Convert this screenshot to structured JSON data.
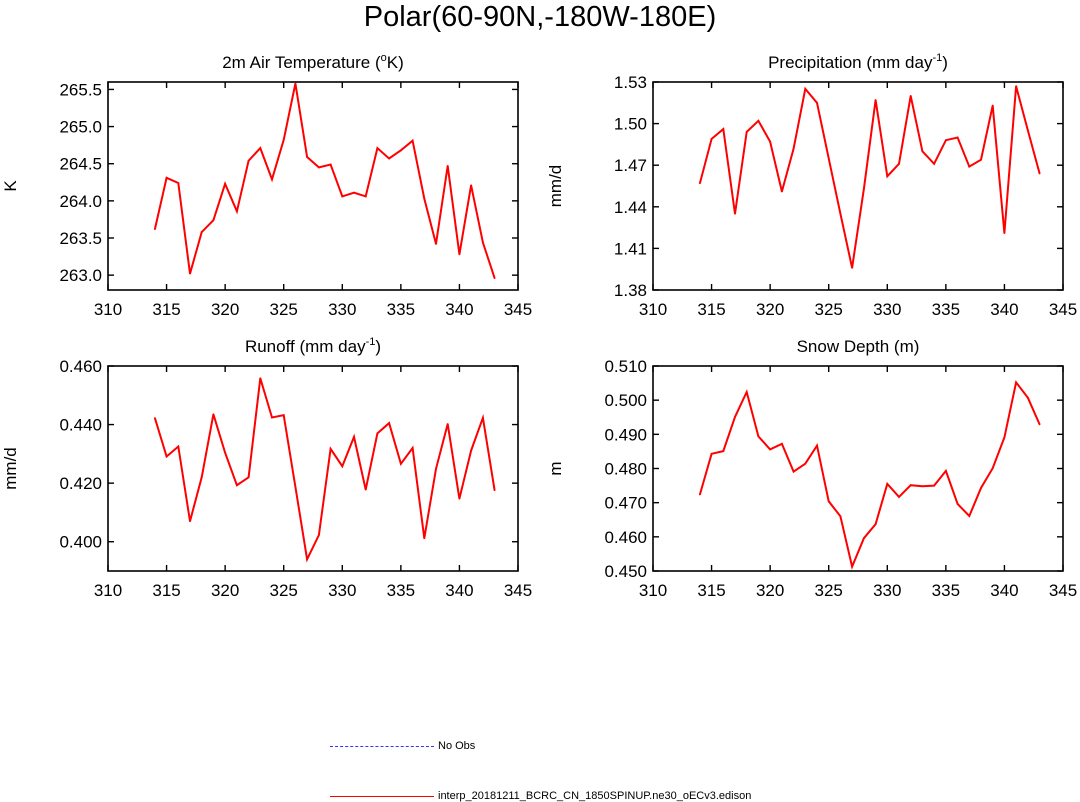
{
  "title": "Polar(60-90N,-180W-180E)",
  "line_color": "#ff0000",
  "obs_color": "#3333ff",
  "legend": [
    {
      "label": "No Obs",
      "style": "dashed",
      "color": "#3333ff"
    },
    {
      "label": "interp_20181211_BCRC_CN_1850SPINUP.ne30_oECv3.edison",
      "style": "solid",
      "color": "#ff0000"
    }
  ],
  "chart_data": [
    {
      "type": "line",
      "title_main": "2m Air Temperature (",
      "title_sup": "o",
      "title_tail": "K)",
      "ylabel": "K",
      "xlim": [
        310,
        345
      ],
      "ylim": [
        262.8,
        265.6
      ],
      "xticks": [
        310,
        315,
        320,
        325,
        330,
        335,
        340,
        345
      ],
      "yticks": [
        263.0,
        263.5,
        264.0,
        264.5,
        265.0,
        265.5
      ],
      "ytick_labels": [
        "263.0",
        "263.5",
        "264.0",
        "264.5",
        "265.0",
        "265.5"
      ],
      "x": [
        314,
        315,
        316,
        317,
        318,
        319,
        320,
        321,
        322,
        323,
        324,
        325,
        326,
        327,
        328,
        329,
        330,
        331,
        332,
        333,
        334,
        335,
        336,
        337,
        338,
        339,
        340,
        341,
        342,
        343
      ],
      "series": [
        {
          "name": "interp_20181211_BCRC_CN_1850SPINUP.ne30_oECv3.edison",
          "values": [
            263.62,
            264.31,
            264.24,
            263.02,
            263.58,
            263.74,
            264.23,
            263.86,
            264.54,
            264.71,
            264.29,
            264.82,
            265.58,
            264.59,
            264.45,
            264.49,
            264.06,
            264.11,
            264.06,
            264.71,
            264.57,
            264.68,
            264.81,
            264.03,
            263.42,
            264.47,
            263.28,
            264.21,
            263.44,
            262.96
          ]
        }
      ]
    },
    {
      "type": "line",
      "title_main": "Precipitation (mm day",
      "title_sup": "-1",
      "title_tail": ")",
      "ylabel": "mm/d",
      "xlim": [
        310,
        345
      ],
      "ylim": [
        1.38,
        1.53
      ],
      "xticks": [
        310,
        315,
        320,
        325,
        330,
        335,
        340,
        345
      ],
      "yticks": [
        1.38,
        1.41,
        1.44,
        1.47,
        1.5,
        1.53
      ],
      "ytick_labels": [
        "1.38",
        "1.41",
        "1.44",
        "1.47",
        "1.50",
        "1.53"
      ],
      "x": [
        314,
        315,
        316,
        317,
        318,
        319,
        320,
        321,
        322,
        323,
        324,
        325,
        326,
        327,
        328,
        329,
        330,
        331,
        332,
        333,
        334,
        335,
        336,
        337,
        338,
        339,
        340,
        341,
        342,
        343
      ],
      "series": [
        {
          "name": "interp_20181211_BCRC_CN_1850SPINUP.ne30_oECv3.edison",
          "values": [
            1.457,
            1.489,
            1.496,
            1.435,
            1.494,
            1.502,
            1.487,
            1.451,
            1.482,
            1.525,
            1.515,
            1.475,
            1.435,
            1.396,
            1.453,
            1.517,
            1.462,
            1.471,
            1.52,
            1.48,
            1.471,
            1.488,
            1.49,
            1.469,
            1.474,
            1.513,
            1.421,
            1.527,
            1.495,
            1.464
          ]
        }
      ]
    },
    {
      "type": "line",
      "title_main": "Runoff (mm day",
      "title_sup": "-1",
      "title_tail": ")",
      "ylabel": "mm/d",
      "xlim": [
        310,
        345
      ],
      "ylim": [
        0.39,
        0.46
      ],
      "xticks": [
        310,
        315,
        320,
        325,
        330,
        335,
        340,
        345
      ],
      "yticks": [
        0.4,
        0.42,
        0.44,
        0.46
      ],
      "ytick_labels": [
        "0.400",
        "0.420",
        "0.440",
        "0.460"
      ],
      "x": [
        314,
        315,
        316,
        317,
        318,
        319,
        320,
        321,
        322,
        323,
        324,
        325,
        326,
        327,
        328,
        329,
        330,
        331,
        332,
        333,
        334,
        335,
        336,
        337,
        338,
        339,
        340,
        341,
        342,
        343
      ],
      "series": [
        {
          "name": "interp_20181211_BCRC_CN_1850SPINUP.ne30_oECv3.edison",
          "values": [
            0.4422,
            0.4291,
            0.4325,
            0.407,
            0.422,
            0.4435,
            0.4304,
            0.4193,
            0.422,
            0.4558,
            0.4424,
            0.4432,
            0.4187,
            0.394,
            0.4023,
            0.4317,
            0.4258,
            0.4358,
            0.4178,
            0.437,
            0.4405,
            0.4266,
            0.432,
            0.4012,
            0.4249,
            0.4402,
            0.4147,
            0.4311,
            0.4423,
            0.4176
          ]
        }
      ]
    },
    {
      "type": "line",
      "title_main": "Snow Depth (m)",
      "title_sup": "",
      "title_tail": "",
      "ylabel": "m",
      "xlim": [
        310,
        345
      ],
      "ylim": [
        0.45,
        0.51
      ],
      "xticks": [
        310,
        315,
        320,
        325,
        330,
        335,
        340,
        345
      ],
      "yticks": [
        0.45,
        0.46,
        0.47,
        0.48,
        0.49,
        0.5,
        0.51
      ],
      "ytick_labels": [
        "0.450",
        "0.460",
        "0.470",
        "0.480",
        "0.490",
        "0.500",
        "0.510"
      ],
      "x": [
        314,
        315,
        316,
        317,
        318,
        319,
        320,
        321,
        322,
        323,
        324,
        325,
        326,
        327,
        328,
        329,
        330,
        331,
        332,
        333,
        334,
        335,
        336,
        337,
        338,
        339,
        340,
        341,
        342,
        343
      ],
      "series": [
        {
          "name": "interp_20181211_BCRC_CN_1850SPINUP.ne30_oECv3.edison",
          "values": [
            0.4724,
            0.4843,
            0.4851,
            0.4951,
            0.5024,
            0.4894,
            0.4856,
            0.4872,
            0.4791,
            0.4814,
            0.4867,
            0.4704,
            0.466,
            0.4513,
            0.4596,
            0.4637,
            0.4755,
            0.4717,
            0.4751,
            0.4748,
            0.475,
            0.4793,
            0.4696,
            0.4661,
            0.4743,
            0.4801,
            0.4891,
            0.5052,
            0.5007,
            0.4929
          ]
        }
      ]
    }
  ]
}
